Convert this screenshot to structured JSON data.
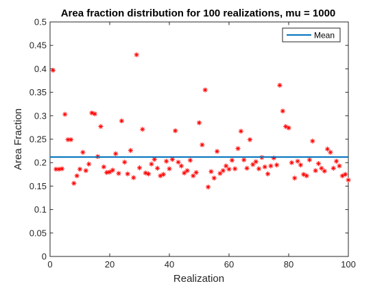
{
  "chart_data": {
    "type": "scatter",
    "title": "Area fraction distribution for 100 realizations, mu = 1000",
    "xlabel": "Realization",
    "ylabel": "Area Fraction",
    "xlim": [
      0,
      100
    ],
    "ylim": [
      0,
      0.5
    ],
    "xticks": [
      0,
      20,
      40,
      60,
      80,
      100
    ],
    "yticks": [
      0,
      0.05,
      0.1,
      0.15,
      0.2,
      0.25,
      0.3,
      0.35,
      0.4,
      0.45,
      0.5
    ],
    "grid": false,
    "legend": {
      "placement": "top-right",
      "entries": [
        "Mean"
      ]
    },
    "colors": {
      "points": "#ff0000",
      "mean": "#0072bd",
      "axes": "#262626"
    },
    "series": [
      {
        "name": "",
        "marker": "asterisk",
        "x": [
          1,
          2,
          3,
          4,
          5,
          6,
          7,
          8,
          9,
          10,
          11,
          12,
          13,
          14,
          15,
          16,
          17,
          18,
          19,
          20,
          21,
          22,
          23,
          24,
          25,
          26,
          27,
          28,
          29,
          30,
          31,
          32,
          33,
          34,
          35,
          36,
          37,
          38,
          39,
          40,
          41,
          42,
          43,
          44,
          45,
          46,
          47,
          48,
          49,
          50,
          51,
          52,
          53,
          54,
          55,
          56,
          57,
          58,
          59,
          60,
          61,
          62,
          63,
          64,
          65,
          66,
          67,
          68,
          69,
          70,
          71,
          72,
          73,
          74,
          75,
          76,
          77,
          78,
          79,
          80,
          81,
          82,
          83,
          84,
          85,
          86,
          87,
          88,
          89,
          90,
          91,
          92,
          93,
          94,
          95,
          96,
          97,
          98,
          99,
          100
        ],
        "y": [
          0.397,
          0.186,
          0.186,
          0.187,
          0.303,
          0.249,
          0.249,
          0.156,
          0.172,
          0.186,
          0.222,
          0.183,
          0.197,
          0.306,
          0.304,
          0.213,
          0.277,
          0.191,
          0.179,
          0.18,
          0.184,
          0.219,
          0.177,
          0.289,
          0.201,
          0.176,
          0.226,
          0.168,
          0.43,
          0.189,
          0.271,
          0.178,
          0.176,
          0.197,
          0.207,
          0.188,
          0.172,
          0.175,
          0.203,
          0.187,
          0.207,
          0.268,
          0.201,
          0.193,
          0.178,
          0.183,
          0.205,
          0.172,
          0.179,
          0.285,
          0.238,
          0.355,
          0.148,
          0.181,
          0.167,
          0.224,
          0.177,
          0.183,
          0.193,
          0.186,
          0.205,
          0.187,
          0.23,
          0.267,
          0.206,
          0.188,
          0.249,
          0.196,
          0.202,
          0.187,
          0.211,
          0.191,
          0.176,
          0.193,
          0.21,
          0.195,
          0.365,
          0.31,
          0.277,
          0.274,
          0.2,
          0.167,
          0.203,
          0.195,
          0.175,
          0.172,
          0.206,
          0.246,
          0.183,
          0.198,
          0.188,
          0.182,
          0.229,
          0.222,
          0.188,
          0.203,
          0.193,
          0.172,
          0.175,
          0.163
        ]
      },
      {
        "name": "Mean",
        "type": "line",
        "x": [
          0,
          100
        ],
        "y": [
          0.212,
          0.212
        ]
      }
    ]
  }
}
